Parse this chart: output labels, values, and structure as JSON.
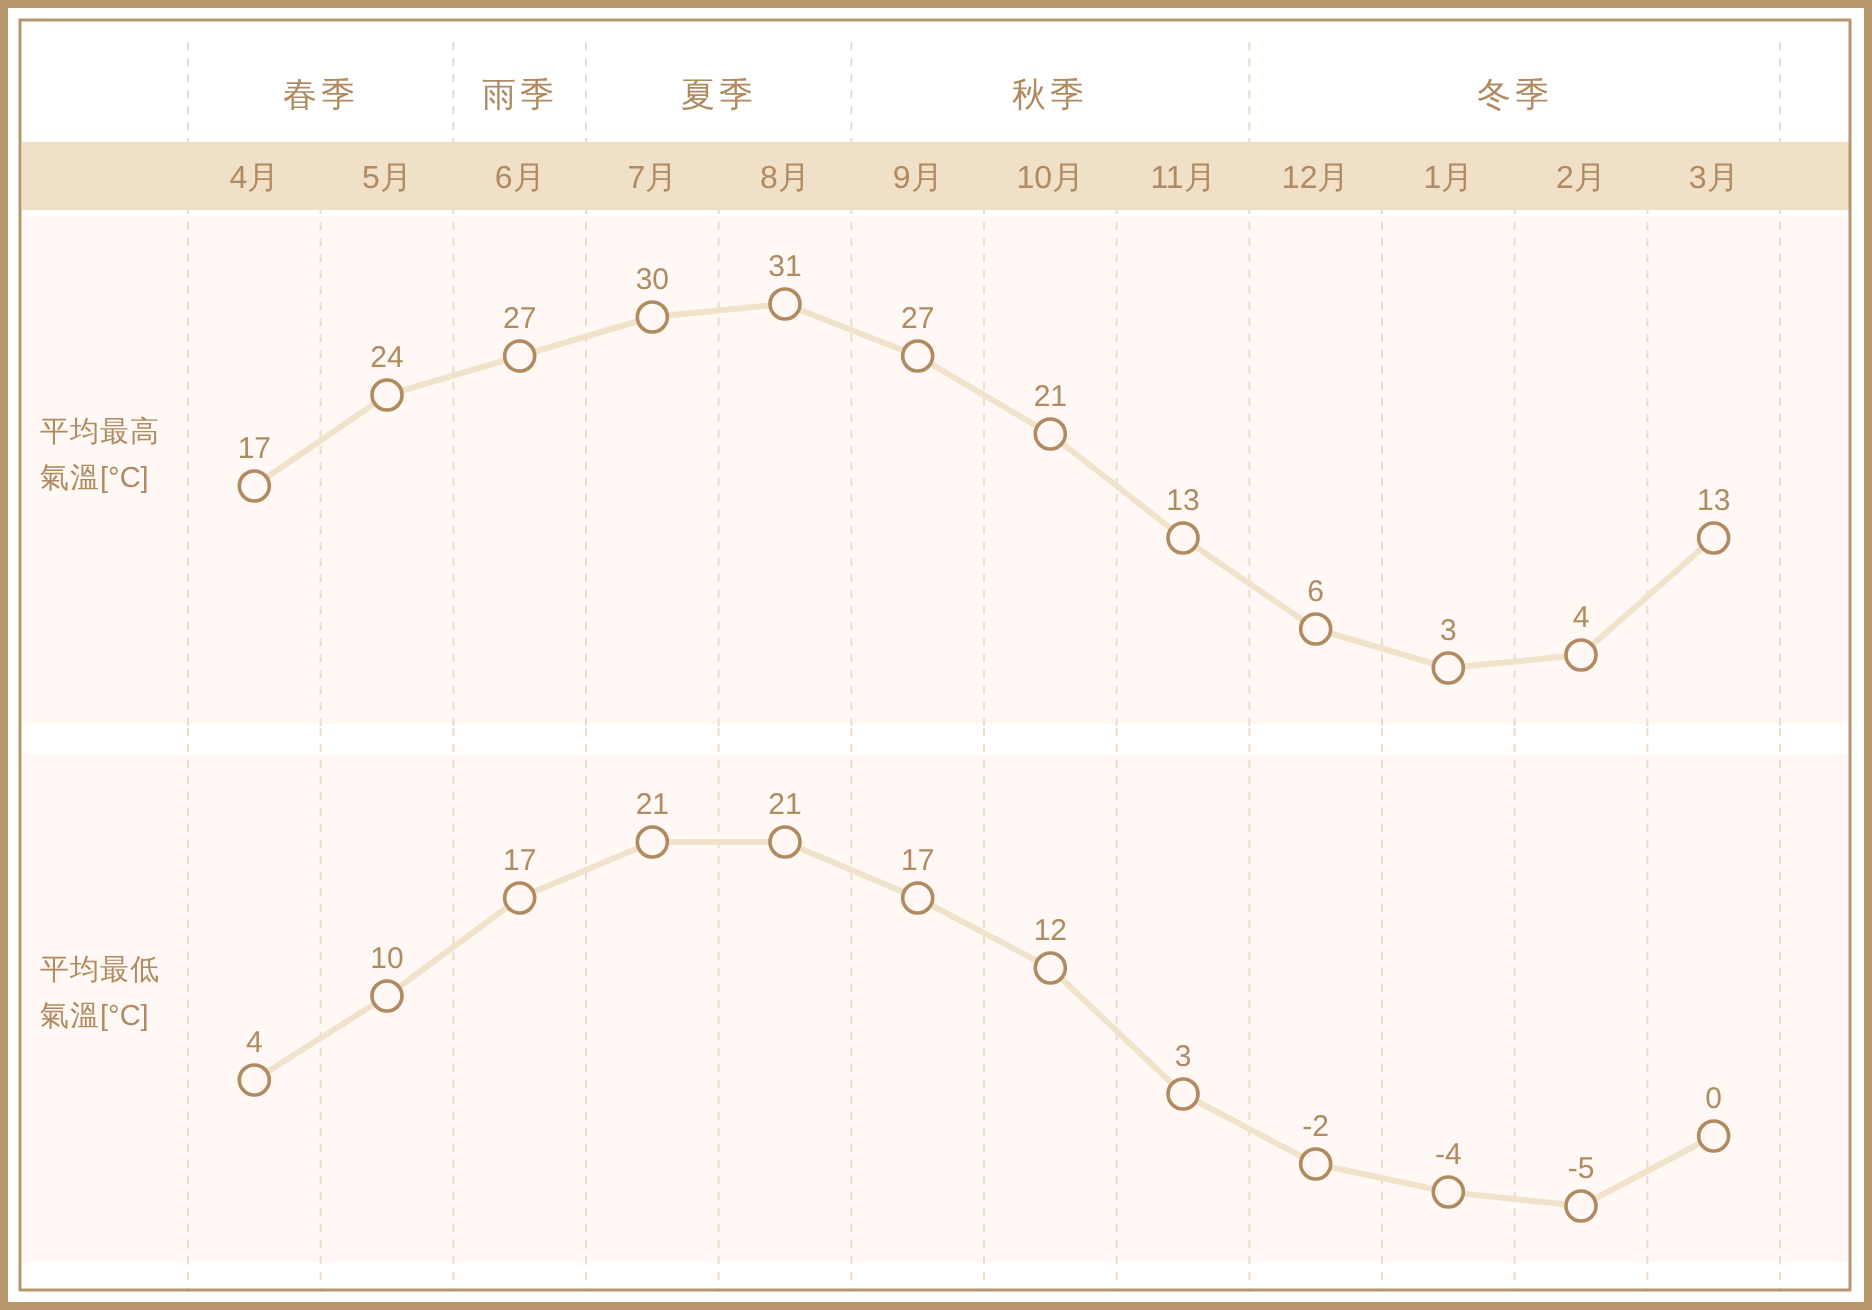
{
  "chart_data": [
    {
      "type": "line",
      "ylabel": "平均最高氣溫[°C]",
      "categories": [
        "4月",
        "5月",
        "6月",
        "7月",
        "8月",
        "9月",
        "10月",
        "11月",
        "12月",
        "1月",
        "2月",
        "3月"
      ],
      "series": [
        {
          "color": "#f1e3cb",
          "colors": [
            "#b08a60",
            "#b08a60",
            "#b08a60",
            "#b08a60",
            "#b08a60",
            "#b08a60",
            "#b08a60",
            "#b08a60",
            "#b08a60",
            "#b08a60",
            "#b08a60",
            "#b08a60"
          ],
          "values": [
            17,
            24,
            27,
            30,
            31,
            27,
            21,
            13,
            6,
            3,
            4,
            13
          ]
        }
      ],
      "annotations": [
        "春季",
        "雨季",
        "夏季",
        "秋季",
        "冬季"
      ],
      "data_labels": true,
      "grid": "x",
      "marker": "circle",
      "tick_labels": "x"
    },
    {
      "type": "line",
      "ylabel": "平均最低氣溫[°C]",
      "categories": [
        null,
        null,
        null,
        null,
        null,
        null,
        null,
        null,
        null,
        null,
        null,
        null
      ],
      "series": [
        {
          "color": "#f1e3cb",
          "colors": [
            "#b08a60",
            "#b08a60",
            "#b08a60",
            "#b08a60",
            "#b08a60",
            "#b08a60",
            "#b08a60",
            "#b08a60",
            "#b08a60",
            "#b08a60",
            "#b08a60",
            "#b08a60"
          ],
          "values": [
            4,
            10,
            17,
            21,
            21,
            17,
            12,
            3,
            -2,
            -4,
            -5,
            0
          ]
        }
      ],
      "data_labels": true,
      "grid": "x",
      "marker": "circle",
      "tick_labels": false
    }
  ]
}
